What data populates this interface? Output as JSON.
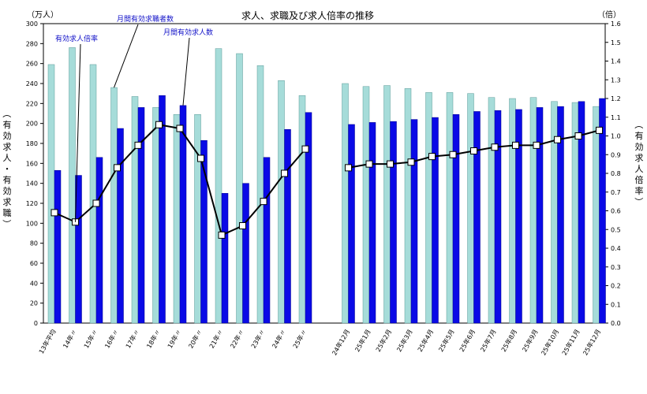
{
  "chart_data": {
    "type": "bar",
    "title": "求人、求職及び求人倍率の推移",
    "left_unit": "（万人）",
    "right_unit": "（倍）",
    "left_axis_label": "（有効求人・有効求職）",
    "right_axis_label": "（有効求人倍率）",
    "ylim_left": [
      0,
      300
    ],
    "ylim_right": [
      0,
      1.6
    ],
    "categories": [
      "13年平均",
      "14年〃",
      "15年〃",
      "16年〃",
      "17年〃",
      "18年〃",
      "19年〃",
      "20年〃",
      "21年〃",
      "22年〃",
      "23年〃",
      "24年〃",
      "25年〃",
      "24年12月",
      "25年1月",
      "25年2月",
      "25年3月",
      "25年4月",
      "25年5月",
      "25年6月",
      "25年7月",
      "25年8月",
      "25年9月",
      "25年10月",
      "25年11月",
      "25年12月"
    ],
    "series": [
      {
        "name": "月間有効求職者数",
        "type": "bar",
        "axis": "left",
        "color": "#a6dcd9",
        "values": [
          259,
          276,
          259,
          236,
          227,
          216,
          209,
          209,
          275,
          270,
          258,
          243,
          228,
          240,
          237,
          238,
          235,
          231,
          231,
          230,
          226,
          225,
          226,
          222,
          221,
          217
        ]
      },
      {
        "name": "月間有効求人数",
        "type": "bar",
        "axis": "left",
        "color": "#0a0ae6",
        "values": [
          153,
          148,
          166,
          195,
          216,
          228,
          218,
          183,
          130,
          140,
          166,
          194,
          211,
          199,
          201,
          202,
          204,
          206,
          209,
          212,
          213,
          214,
          216,
          217,
          222,
          225
        ]
      },
      {
        "name": "有効求人倍率",
        "type": "line",
        "axis": "right",
        "color": "#000000",
        "values": [
          0.59,
          0.54,
          0.64,
          0.83,
          0.95,
          1.06,
          1.04,
          0.88,
          0.47,
          0.52,
          0.65,
          0.8,
          0.93,
          0.83,
          0.85,
          0.85,
          0.86,
          0.89,
          0.9,
          0.92,
          0.94,
          0.95,
          0.95,
          0.98,
          1.0,
          1.03
        ]
      }
    ],
    "left_ticks": [
      0,
      20,
      40,
      60,
      80,
      100,
      120,
      140,
      160,
      180,
      200,
      220,
      240,
      260,
      280,
      300
    ],
    "right_ticks": [
      "0.0",
      "0.1",
      "0.2",
      "0.3",
      "0.4",
      "0.5",
      "0.6",
      "0.7",
      "0.8",
      "0.9",
      "1.0",
      "1.1",
      "1.2",
      "1.3",
      "1.4",
      "1.5",
      "1.6"
    ],
    "annotations": [
      {
        "text": "月間有効求職者数",
        "target_series": 0,
        "target_index": 3
      },
      {
        "text": "有効求人倍率",
        "target_series": 2,
        "target_index": 1
      },
      {
        "text": "月間有効求人数",
        "target_series": 1,
        "target_index": 6
      }
    ]
  }
}
